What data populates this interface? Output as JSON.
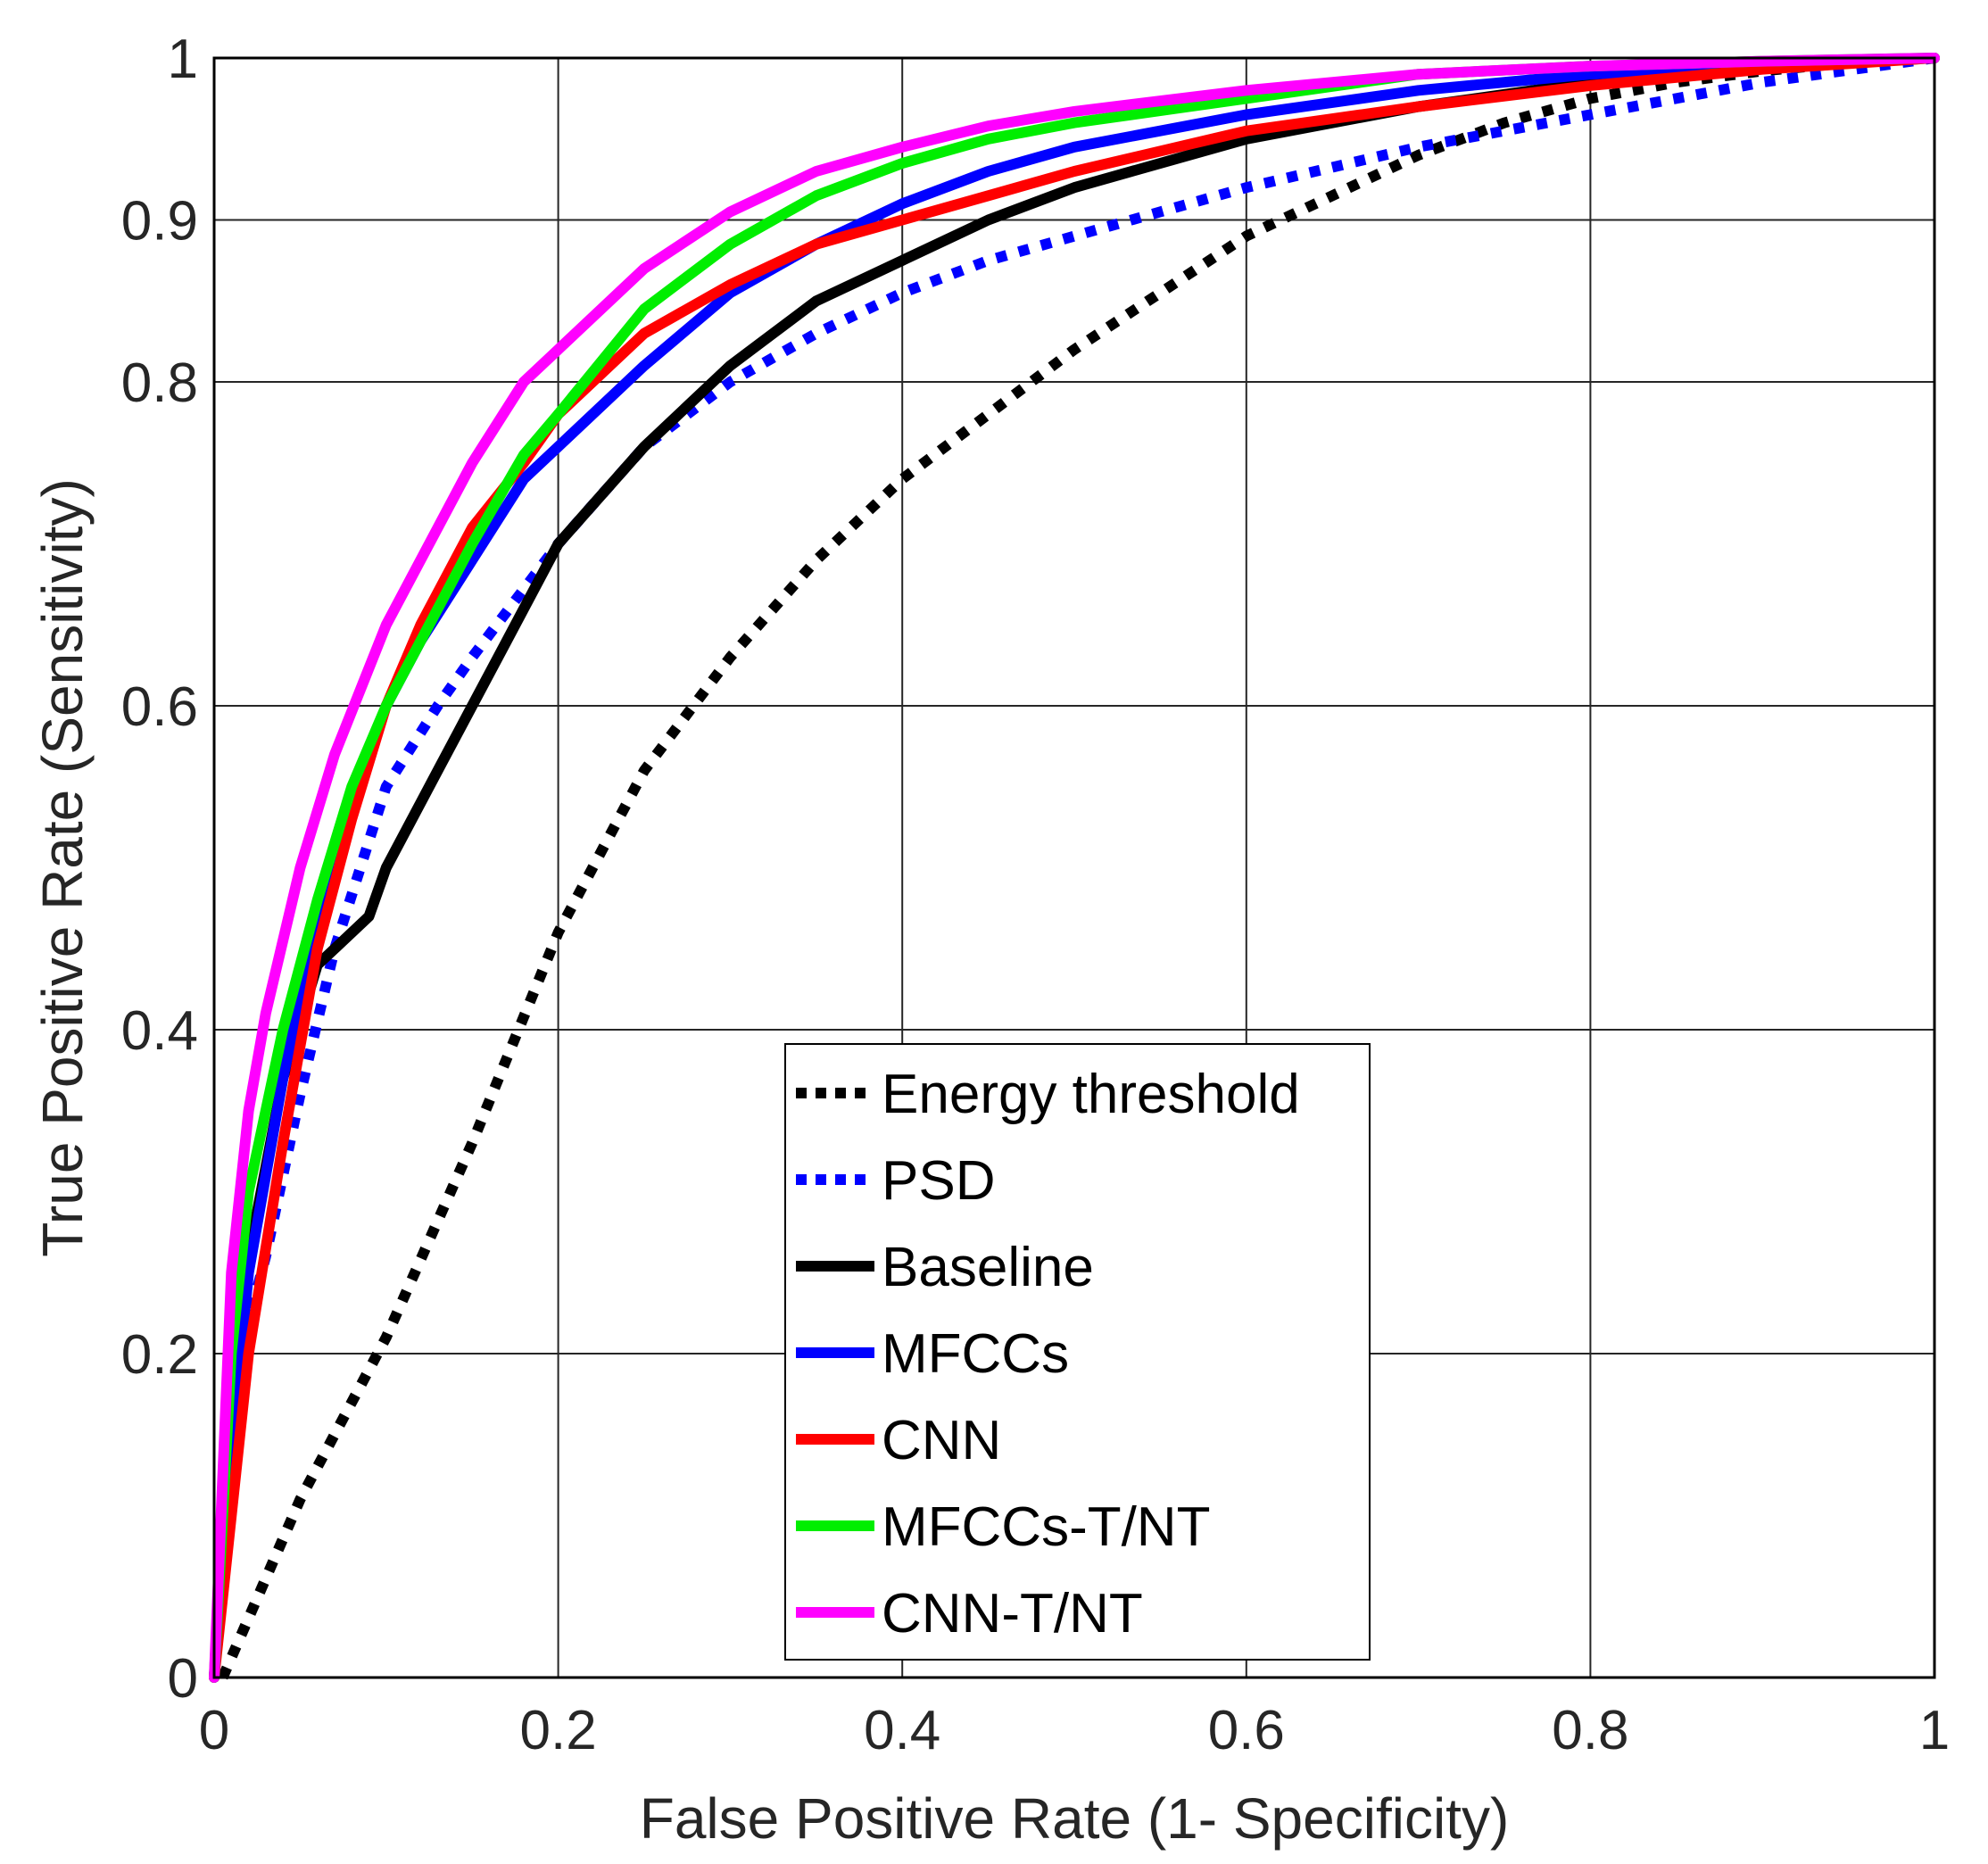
{
  "chart_data": {
    "type": "line",
    "title": "",
    "xlabel": "False Positive Rate (1- Specificity)",
    "ylabel": "True Positive Rate (Sensitivity)",
    "xlim": [
      0,
      1
    ],
    "ylim": [
      0,
      1
    ],
    "grid": true,
    "legend_position": "bottom-center",
    "xticks": [
      0,
      0.2,
      0.4,
      0.6,
      0.8,
      1
    ],
    "xtick_labels": [
      "0",
      "0.2",
      "0.4",
      "0.6",
      "0.8",
      "1"
    ],
    "yticks": [
      0,
      0.2,
      0.4,
      0.6,
      0.8,
      0.9,
      1
    ],
    "ytick_labels": [
      "0",
      "0.2",
      "0.4",
      "0.6",
      "0.8",
      "0.9",
      "1"
    ],
    "series": [
      {
        "name": "Energy threshold",
        "color": "#000000",
        "style": "dotted",
        "x": [
          0.005,
          0.05,
          0.1,
          0.15,
          0.2,
          0.25,
          0.3,
          0.35,
          0.4,
          0.45,
          0.5,
          0.55,
          0.6,
          0.65,
          0.7,
          0.75,
          0.8,
          0.85,
          0.9,
          0.95,
          1.0
        ],
        "y": [
          0.0,
          0.11,
          0.21,
          0.33,
          0.46,
          0.56,
          0.63,
          0.69,
          0.74,
          0.78,
          0.82,
          0.855,
          0.89,
          0.915,
          0.94,
          0.96,
          0.975,
          0.985,
          0.992,
          0.997,
          1.0
        ]
      },
      {
        "name": "PSD",
        "color": "#0000ff",
        "style": "dotted",
        "x": [
          0.0,
          0.01,
          0.02,
          0.03,
          0.05,
          0.07,
          0.1,
          0.13,
          0.15,
          0.2,
          0.25,
          0.3,
          0.35,
          0.4,
          0.45,
          0.5,
          0.55,
          0.6,
          0.7,
          0.8,
          0.9,
          1.0
        ],
        "y": [
          0.0,
          0.15,
          0.22,
          0.26,
          0.36,
          0.45,
          0.55,
          0.6,
          0.63,
          0.7,
          0.76,
          0.8,
          0.83,
          0.855,
          0.875,
          0.89,
          0.905,
          0.92,
          0.945,
          0.965,
          0.985,
          1.0
        ]
      },
      {
        "name": "Baseline",
        "color": "#000000",
        "style": "solid",
        "x": [
          0.0,
          0.01,
          0.02,
          0.04,
          0.06,
          0.07,
          0.09,
          0.1,
          0.13,
          0.15,
          0.17,
          0.2,
          0.25,
          0.3,
          0.35,
          0.4,
          0.45,
          0.5,
          0.6,
          0.7,
          0.8,
          0.9,
          1.0
        ],
        "y": [
          0.0,
          0.14,
          0.26,
          0.37,
          0.44,
          0.45,
          0.47,
          0.5,
          0.56,
          0.6,
          0.64,
          0.7,
          0.76,
          0.81,
          0.85,
          0.875,
          0.9,
          0.92,
          0.95,
          0.97,
          0.985,
          0.995,
          1.0
        ]
      },
      {
        "name": "MFCCs",
        "color": "#0000ff",
        "style": "solid",
        "x": [
          0.0,
          0.01,
          0.02,
          0.04,
          0.06,
          0.08,
          0.1,
          0.12,
          0.15,
          0.18,
          0.2,
          0.25,
          0.3,
          0.35,
          0.4,
          0.45,
          0.5,
          0.6,
          0.7,
          0.8,
          0.9,
          1.0
        ],
        "y": [
          0.0,
          0.14,
          0.25,
          0.37,
          0.47,
          0.54,
          0.6,
          0.64,
          0.69,
          0.74,
          0.76,
          0.81,
          0.855,
          0.885,
          0.91,
          0.93,
          0.945,
          0.965,
          0.98,
          0.99,
          0.996,
          1.0
        ]
      },
      {
        "name": "CNN",
        "color": "#ff0000",
        "style": "solid",
        "x": [
          0.0,
          0.01,
          0.02,
          0.04,
          0.06,
          0.08,
          0.1,
          0.12,
          0.15,
          0.18,
          0.2,
          0.25,
          0.3,
          0.35,
          0.4,
          0.45,
          0.5,
          0.6,
          0.7,
          0.8,
          0.9,
          1.0
        ],
        "y": [
          0.0,
          0.1,
          0.2,
          0.33,
          0.45,
          0.53,
          0.6,
          0.65,
          0.71,
          0.75,
          0.78,
          0.83,
          0.86,
          0.885,
          0.9,
          0.915,
          0.93,
          0.955,
          0.97,
          0.983,
          0.993,
          1.0
        ]
      },
      {
        "name": "MFCCs-T/NT",
        "color": "#00ee00",
        "style": "solid",
        "x": [
          0.0,
          0.01,
          0.02,
          0.04,
          0.06,
          0.08,
          0.1,
          0.12,
          0.15,
          0.18,
          0.2,
          0.25,
          0.3,
          0.35,
          0.4,
          0.45,
          0.5,
          0.6,
          0.7,
          0.8,
          0.9,
          1.0
        ],
        "y": [
          0.0,
          0.2,
          0.3,
          0.4,
          0.48,
          0.55,
          0.6,
          0.64,
          0.7,
          0.755,
          0.78,
          0.845,
          0.885,
          0.915,
          0.935,
          0.95,
          0.96,
          0.975,
          0.99,
          0.995,
          0.998,
          1.0
        ]
      },
      {
        "name": "CNN-T/NT",
        "color": "#ff00ff",
        "style": "solid",
        "x": [
          0.0,
          0.01,
          0.02,
          0.03,
          0.05,
          0.07,
          0.1,
          0.13,
          0.15,
          0.18,
          0.2,
          0.25,
          0.3,
          0.35,
          0.4,
          0.45,
          0.5,
          0.6,
          0.7,
          0.8,
          0.9,
          1.0
        ],
        "y": [
          0.0,
          0.25,
          0.35,
          0.41,
          0.5,
          0.57,
          0.65,
          0.71,
          0.75,
          0.8,
          0.82,
          0.87,
          0.905,
          0.93,
          0.945,
          0.958,
          0.967,
          0.98,
          0.99,
          0.995,
          0.998,
          1.0
        ]
      }
    ]
  }
}
